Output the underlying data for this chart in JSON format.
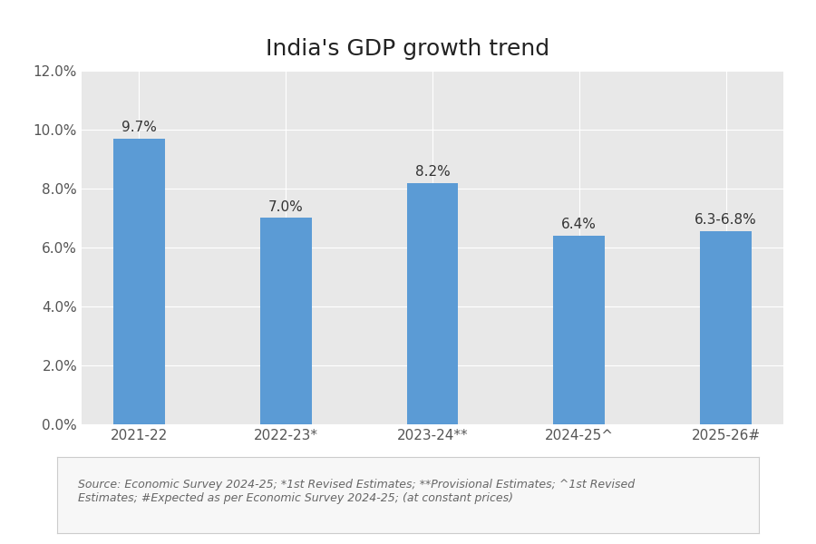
{
  "title": "India's GDP growth trend",
  "categories": [
    "2021-22",
    "2022-23*",
    "2023-24**",
    "2024-25^",
    "2025-26#"
  ],
  "values": [
    9.7,
    7.0,
    8.2,
    6.4,
    6.55
  ],
  "bar_labels": [
    "9.7%",
    "7.0%",
    "8.2%",
    "6.4%",
    "6.3-6.8%"
  ],
  "bar_color": "#5B9BD5",
  "ylim": [
    0,
    0.12
  ],
  "yticks": [
    0.0,
    0.02,
    0.04,
    0.06,
    0.08,
    0.1,
    0.12
  ],
  "ytick_labels": [
    "0.0%",
    "2.0%",
    "4.0%",
    "6.0%",
    "8.0%",
    "10.0%",
    "12.0%"
  ],
  "title_fontsize": 18,
  "tick_fontsize": 11,
  "label_fontsize": 11,
  "source_text": "Source: Economic Survey 2024-25; *1st Revised Estimates; **Provisional Estimates; ^1st Revised\nEstimates; #Expected as per Economic Survey 2024-25; (at constant prices)",
  "background_color": "#ffffff",
  "plot_bg_color": "#e8e8e8",
  "grid_color": "#ffffff",
  "source_box_color": "#f7f7f7",
  "source_box_edge": "#cccccc"
}
